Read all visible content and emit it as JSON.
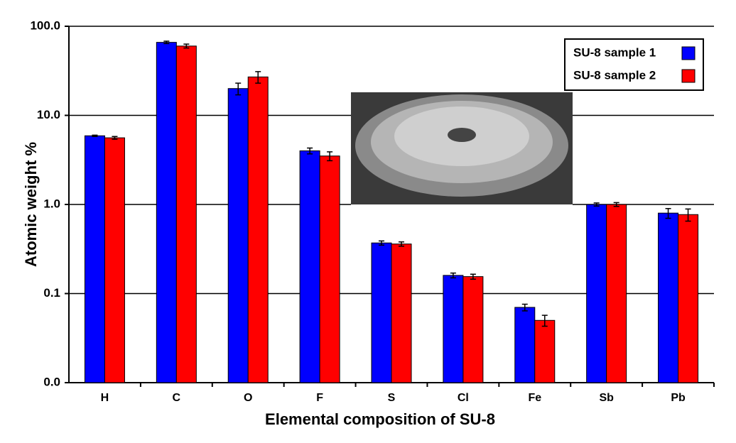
{
  "chart_data": {
    "type": "bar",
    "log_scale": true,
    "grid": true,
    "legend_position": "upper right",
    "ylabel": "Atomic weight %",
    "xlabel": "Elemental composition of SU-8",
    "categories": [
      "H",
      "C",
      "O",
      "F",
      "S",
      "Cl",
      "Fe",
      "Sb",
      "Pb"
    ],
    "series": [
      {
        "name": "SU-8 sample 1",
        "color": "#0000ff",
        "values": [
          5.9,
          66,
          20,
          4.0,
          0.37,
          0.16,
          0.07,
          1.0,
          0.8
        ],
        "errors": [
          0.1,
          2,
          3,
          0.3,
          0.02,
          0.01,
          0.006,
          0.04,
          0.1
        ]
      },
      {
        "name": "SU-8 sample 2",
        "color": "#ff0000",
        "values": [
          5.6,
          60,
          27,
          3.5,
          0.36,
          0.155,
          0.05,
          1.0,
          0.77
        ],
        "errors": [
          0.2,
          3,
          4,
          0.4,
          0.02,
          0.01,
          0.007,
          0.05,
          0.12
        ]
      }
    ],
    "ylim": [
      0.01,
      100
    ],
    "yticks": [
      {
        "value": 0.01,
        "label": "0.0"
      },
      0.1,
      {
        "value": 1,
        "label": "1.0"
      },
      {
        "value": 10,
        "label": "10.0"
      },
      {
        "value": 100,
        "label": "100.0"
      }
    ]
  }
}
